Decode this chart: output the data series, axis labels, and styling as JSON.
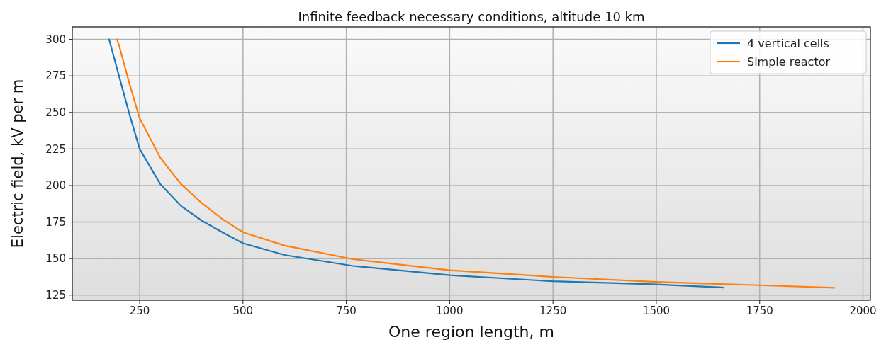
{
  "chart_data": {
    "type": "line",
    "title": "Infinite feedback necessary conditions, altitude 10 km",
    "xlabel": "One region length, m",
    "ylabel": "Electric field, kV per m",
    "xlim": [
      87,
      2018
    ],
    "xticks": [
      250,
      500,
      750,
      1000,
      1250,
      1500,
      1750,
      2000
    ],
    "ylim": [
      121.5,
      308.5
    ],
    "yticks": [
      125,
      150,
      175,
      200,
      225,
      250,
      275,
      300
    ],
    "grid": true,
    "legend": "top right",
    "series": [
      {
        "name": "4 vertical cells",
        "color": "#1f77b4",
        "x": [
          176,
          200,
          225,
          250,
          300,
          350,
          400,
          450,
          500,
          600,
          766,
          1000,
          1250,
          1500,
          1663
        ],
        "values": [
          300,
          275,
          249,
          225,
          201,
          186,
          176,
          168,
          160.5,
          152.5,
          145,
          138.6,
          134.5,
          132.3,
          130.2
        ]
      },
      {
        "name": "Simple reactor",
        "color": "#ff7f0e",
        "x": [
          195,
          200,
          225,
          250,
          300,
          350,
          400,
          450,
          500,
          600,
          766,
          1000,
          1250,
          1500,
          1750,
          1931
        ],
        "values": [
          300,
          296,
          270,
          246,
          219,
          201,
          188,
          177,
          168,
          159,
          149.6,
          142,
          137.5,
          134,
          131.8,
          130
        ]
      }
    ]
  }
}
